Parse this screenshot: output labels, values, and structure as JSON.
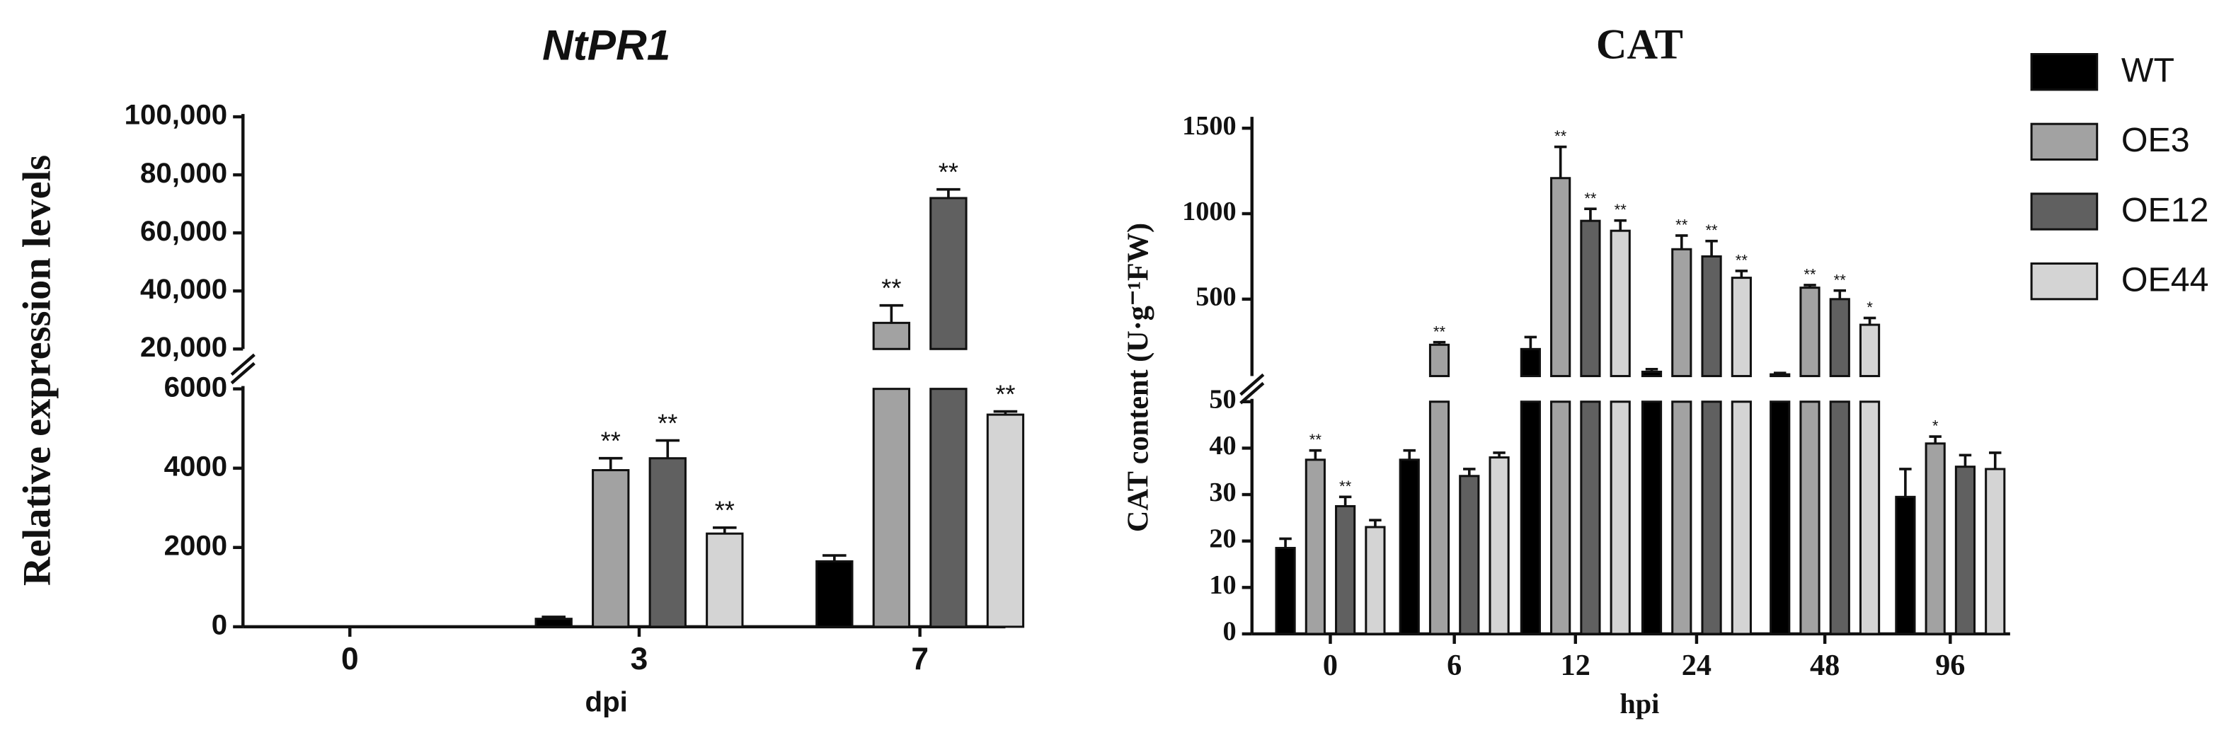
{
  "legend": [
    {
      "name": "WT",
      "color": "#000000"
    },
    {
      "name": "OE3",
      "color": "#a2a2a2"
    },
    {
      "name": "OE12",
      "color": "#606060"
    },
    {
      "name": "OE44",
      "color": "#d4d4d4"
    }
  ],
  "chart_data": [
    {
      "type": "bar",
      "title": "NtPR1",
      "x_label": "dpi",
      "y_label": "Relative expression levels",
      "categories": [
        "0",
        "3",
        "7"
      ],
      "segments": [
        {
          "ylim": [
            0,
            6000
          ],
          "yticks": [
            0,
            2000,
            4000,
            6000
          ]
        },
        {
          "ylim": [
            20000,
            100000
          ],
          "yticks": [
            {
              "value": 20000,
              "label": "20,000"
            },
            {
              "value": 40000,
              "label": "40,000"
            },
            {
              "value": 60000,
              "label": "60,000"
            },
            {
              "value": 80000,
              "label": "80,000"
            },
            {
              "value": 100000,
              "label": "100,000"
            }
          ]
        }
      ],
      "series": [
        {
          "values": [
            0,
            200,
            1650
          ],
          "errors": [
            0,
            50,
            150
          ],
          "significance": [
            null,
            null,
            null
          ]
        },
        {
          "values": [
            0,
            3950,
            29000
          ],
          "errors": [
            0,
            300,
            6000
          ],
          "significance": [
            null,
            "**",
            "**"
          ]
        },
        {
          "values": [
            0,
            4250,
            72000
          ],
          "errors": [
            0,
            450,
            3000
          ],
          "significance": [
            null,
            "**",
            "**"
          ]
        },
        {
          "values": [
            0,
            2350,
            5350
          ],
          "errors": [
            0,
            150,
            80
          ],
          "significance": [
            null,
            "**",
            "**"
          ]
        }
      ]
    },
    {
      "type": "bar",
      "title": "CAT",
      "x_label": "hpi",
      "y_label": "CAT content (U·g⁻¹FW)",
      "categories": [
        "0",
        "6",
        "12",
        "24",
        "48",
        "96"
      ],
      "segments": [
        {
          "ylim": [
            0,
            50
          ],
          "yticks": [
            0,
            10,
            20,
            30,
            40,
            50
          ]
        },
        {
          "ylim": [
            50,
            1550
          ],
          "yticks": [
            500,
            1000,
            1500
          ]
        }
      ],
      "series": [
        {
          "values": [
            18.5,
            37.5,
            208,
            75,
            60,
            29.5
          ],
          "errors": [
            2,
            2,
            70,
            15,
            8,
            6
          ],
          "significance": [
            null,
            null,
            null,
            null,
            null,
            null
          ]
        },
        {
          "values": [
            37.5,
            233,
            1208,
            792,
            567,
            41
          ],
          "errors": [
            2,
            15,
            183,
            80,
            15,
            1.5
          ],
          "significance": [
            "**",
            "**",
            "**",
            "**",
            "**",
            "*"
          ]
        },
        {
          "values": [
            27.5,
            34,
            958,
            750,
            500,
            36
          ],
          "errors": [
            2,
            1.5,
            70,
            90,
            50,
            2.5
          ],
          "significance": [
            "**",
            null,
            "**",
            "**",
            "**",
            null
          ]
        },
        {
          "values": [
            23,
            38,
            900,
            625,
            350,
            35.5
          ],
          "errors": [
            1.5,
            1,
            60,
            40,
            40,
            3.5
          ],
          "significance": [
            null,
            null,
            "**",
            "**",
            "*",
            null
          ]
        }
      ]
    }
  ]
}
